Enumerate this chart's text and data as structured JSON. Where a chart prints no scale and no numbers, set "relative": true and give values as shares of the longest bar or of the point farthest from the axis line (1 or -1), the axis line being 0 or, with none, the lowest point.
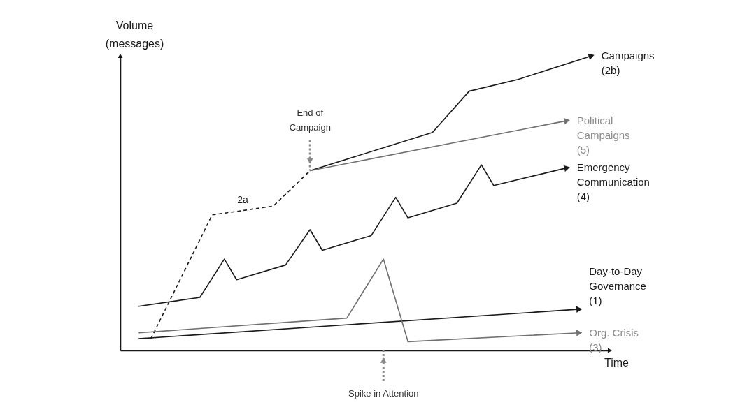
{
  "chart_data": {
    "type": "line",
    "relative": true,
    "xlabel": "Time",
    "ylabel": "Volume\n(messages)",
    "grid": false,
    "legend": "right",
    "categories": [
      null,
      null,
      null,
      null,
      null,
      null,
      null,
      null,
      null,
      null,
      null,
      null,
      null,
      null,
      null,
      null,
      null,
      null,
      null,
      null,
      null,
      null,
      null,
      null,
      null,
      null,
      null,
      null,
      null,
      null,
      null,
      null,
      null,
      null,
      null,
      null,
      null,
      null,
      null,
      null
    ],
    "series": [
      {
        "name": "2a",
        "color": "#1a1a1a",
        "line_style": "dashed",
        "values": [
          null,
          null,
          0.04,
          null,
          null,
          null,
          null,
          0.46,
          null,
          null,
          null,
          null,
          0.49,
          null,
          null,
          0.61,
          null,
          null,
          null,
          null,
          null,
          null,
          null,
          null,
          null,
          null,
          null,
          null,
          null,
          null,
          null,
          null,
          null,
          null,
          null,
          null,
          null,
          null,
          null,
          null
        ]
      },
      {
        "name": "Campaigns\n(2b)",
        "color": "#1a1a1a",
        "values": [
          null,
          null,
          null,
          null,
          null,
          null,
          null,
          null,
          null,
          null,
          null,
          null,
          null,
          null,
          null,
          0.61,
          null,
          null,
          null,
          null,
          null,
          null,
          null,
          null,
          null,
          0.74,
          null,
          null,
          0.88,
          null,
          null,
          null,
          0.92,
          null,
          null,
          null,
          null,
          null,
          1,
          null
        ]
      },
      {
        "name": "Political\nCampaigns\n(5)",
        "color": "#707070",
        "values": [
          null,
          null,
          null,
          null,
          null,
          null,
          null,
          null,
          null,
          null,
          null,
          null,
          null,
          null,
          null,
          0.61,
          null,
          null,
          null,
          null,
          null,
          null,
          null,
          null,
          null,
          null,
          null,
          null,
          null,
          null,
          null,
          null,
          null,
          null,
          null,
          null,
          0.78,
          null,
          null,
          null
        ]
      },
      {
        "name": "Emergency\nCommunication\n(4)",
        "color": "#1a1a1a",
        "values": [
          null,
          0.15,
          null,
          null,
          null,
          null,
          0.18,
          null,
          0.31,
          0.24,
          null,
          null,
          null,
          0.29,
          null,
          0.41,
          0.34,
          null,
          null,
          null,
          0.39,
          null,
          0.52,
          0.45,
          null,
          null,
          null,
          0.5,
          null,
          0.63,
          0.56,
          null,
          null,
          null,
          null,
          null,
          0.62,
          null,
          null,
          null
        ]
      },
      {
        "name": "Day-to-Day\nGovernance\n(1)",
        "color": "#1a1a1a",
        "values": [
          null,
          0.04,
          null,
          null,
          null,
          null,
          null,
          null,
          null,
          null,
          null,
          null,
          null,
          null,
          null,
          null,
          null,
          null,
          null,
          null,
          null,
          null,
          null,
          null,
          null,
          null,
          null,
          null,
          null,
          null,
          null,
          null,
          null,
          null,
          null,
          null,
          null,
          0.14,
          null,
          null
        ]
      },
      {
        "name": "Org. Crisis\n(3)",
        "color": "#707070",
        "values": [
          null,
          0.06,
          null,
          null,
          null,
          null,
          null,
          null,
          null,
          null,
          null,
          null,
          null,
          null,
          null,
          null,
          null,
          null,
          0.11,
          null,
          null,
          0.31,
          null,
          0.03,
          null,
          null,
          null,
          null,
          null,
          null,
          null,
          null,
          null,
          null,
          null,
          null,
          null,
          0.06,
          null,
          null
        ]
      }
    ],
    "annotations": [
      "End of\nCampaign",
      "Spike in Attention"
    ]
  }
}
